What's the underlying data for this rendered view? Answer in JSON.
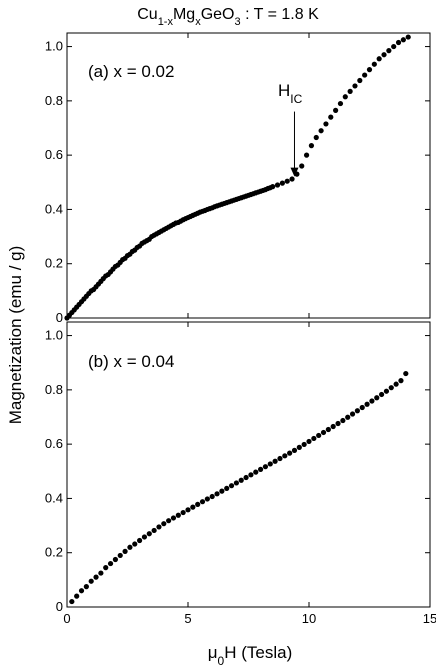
{
  "title": {
    "prefix": "Cu",
    "sub_1": "1-x",
    "mid": "Mg",
    "sub_2": "x",
    "mid2": "GeO",
    "sub_3": "3",
    "suffix": " : T = 1.8 K"
  },
  "ylabel": "Magnetization (emu / g)",
  "xlabel": {
    "mu": "μ",
    "sub": "0",
    "rest": "H (Tesla)"
  },
  "annotation": {
    "main": "H",
    "sub": "IC",
    "x": 9.4,
    "y": 0.51
  },
  "chart_data": [
    {
      "type": "scatter",
      "panel_label": "(a) x = 0.02",
      "xlim": [
        0,
        15
      ],
      "ylim": [
        0,
        1.05
      ],
      "xticks": [
        "0",
        "5",
        "10",
        "15"
      ],
      "yticks": [
        "0",
        "0.2",
        "0.4",
        "0.6",
        "0.8",
        "1.0"
      ],
      "series": [
        {
          "x": [
            0.0,
            0.1,
            0.2,
            0.3,
            0.4,
            0.5,
            0.6,
            0.7,
            0.8,
            0.9,
            1.0,
            1.1,
            1.2,
            1.3,
            1.4,
            1.5,
            1.6,
            1.7,
            1.8,
            1.9,
            2.0,
            2.1,
            2.2,
            2.3,
            2.4,
            2.5,
            2.6,
            2.7,
            2.8,
            2.9,
            3.0,
            3.1,
            3.2,
            3.3,
            3.4,
            3.5,
            3.6,
            3.7,
            3.8,
            3.9,
            4.0,
            4.1,
            4.2,
            4.3,
            4.4,
            4.5,
            4.6,
            4.7,
            4.8,
            4.9,
            5.0,
            5.1,
            5.2,
            5.3,
            5.4,
            5.5,
            5.6,
            5.7,
            5.8,
            5.9,
            6.0,
            6.1,
            6.2,
            6.3,
            6.4,
            6.5,
            6.6,
            6.7,
            6.8,
            6.9,
            7.0,
            7.1,
            7.2,
            7.3,
            7.4,
            7.5,
            7.6,
            7.7,
            7.8,
            7.9,
            8.0,
            8.1,
            8.2,
            8.3,
            8.4,
            8.5,
            8.7,
            8.9,
            9.1,
            9.3,
            9.5,
            9.7,
            9.9,
            10.1,
            10.3,
            10.5,
            10.7,
            10.9,
            11.1,
            11.3,
            11.5,
            11.7,
            11.9,
            12.1,
            12.3,
            12.5,
            12.7,
            12.9,
            13.1,
            13.3,
            13.5,
            13.7,
            13.9,
            14.1
          ],
          "y": [
            0.0,
            0.01,
            0.02,
            0.03,
            0.04,
            0.05,
            0.06,
            0.07,
            0.08,
            0.09,
            0.1,
            0.105,
            0.115,
            0.125,
            0.135,
            0.145,
            0.155,
            0.16,
            0.17,
            0.18,
            0.19,
            0.195,
            0.205,
            0.215,
            0.22,
            0.23,
            0.235,
            0.245,
            0.25,
            0.26,
            0.265,
            0.275,
            0.28,
            0.285,
            0.29,
            0.3,
            0.305,
            0.31,
            0.315,
            0.32,
            0.325,
            0.33,
            0.335,
            0.34,
            0.345,
            0.35,
            0.352,
            0.357,
            0.362,
            0.366,
            0.37,
            0.374,
            0.378,
            0.382,
            0.386,
            0.39,
            0.393,
            0.396,
            0.4,
            0.403,
            0.406,
            0.41,
            0.413,
            0.416,
            0.419,
            0.422,
            0.425,
            0.428,
            0.431,
            0.434,
            0.437,
            0.44,
            0.443,
            0.446,
            0.449,
            0.452,
            0.455,
            0.458,
            0.461,
            0.464,
            0.467,
            0.47,
            0.473,
            0.477,
            0.48,
            0.484,
            0.49,
            0.497,
            0.504,
            0.512,
            0.53,
            0.56,
            0.6,
            0.635,
            0.665,
            0.69,
            0.715,
            0.74,
            0.765,
            0.79,
            0.815,
            0.835,
            0.855,
            0.875,
            0.895,
            0.915,
            0.935,
            0.955,
            0.97,
            0.985,
            1.0,
            1.015,
            1.025,
            1.035
          ]
        }
      ]
    },
    {
      "type": "scatter",
      "panel_label": "(b) x = 0.04",
      "xlim": [
        0,
        15
      ],
      "ylim": [
        0,
        1.05
      ],
      "xticks": [
        "0",
        "5",
        "10",
        "15"
      ],
      "yticks": [
        "0",
        "0.2",
        "0.4",
        "0.6",
        "0.8",
        "1.0"
      ],
      "series": [
        {
          "x": [
            0.2,
            0.4,
            0.6,
            0.8,
            1.0,
            1.2,
            1.4,
            1.6,
            1.8,
            2.0,
            2.2,
            2.4,
            2.6,
            2.8,
            3.0,
            3.2,
            3.4,
            3.6,
            3.8,
            4.0,
            4.2,
            4.4,
            4.6,
            4.8,
            5.0,
            5.2,
            5.4,
            5.6,
            5.8,
            6.0,
            6.2,
            6.4,
            6.6,
            6.8,
            7.0,
            7.2,
            7.4,
            7.6,
            7.8,
            8.0,
            8.2,
            8.4,
            8.6,
            8.8,
            9.0,
            9.2,
            9.4,
            9.6,
            9.8,
            10.0,
            10.2,
            10.4,
            10.6,
            10.8,
            11.0,
            11.2,
            11.4,
            11.6,
            11.8,
            12.0,
            12.2,
            12.4,
            12.6,
            12.8,
            13.0,
            13.2,
            13.4,
            13.6,
            13.8,
            14.0
          ],
          "y": [
            0.02,
            0.04,
            0.06,
            0.075,
            0.095,
            0.11,
            0.125,
            0.145,
            0.16,
            0.175,
            0.19,
            0.205,
            0.22,
            0.232,
            0.245,
            0.258,
            0.27,
            0.282,
            0.295,
            0.307,
            0.318,
            0.328,
            0.338,
            0.348,
            0.358,
            0.368,
            0.378,
            0.388,
            0.398,
            0.407,
            0.417,
            0.427,
            0.437,
            0.447,
            0.457,
            0.467,
            0.477,
            0.487,
            0.497,
            0.507,
            0.517,
            0.527,
            0.537,
            0.547,
            0.557,
            0.567,
            0.577,
            0.588,
            0.599,
            0.61,
            0.621,
            0.632,
            0.643,
            0.654,
            0.665,
            0.676,
            0.687,
            0.699,
            0.711,
            0.723,
            0.735,
            0.747,
            0.759,
            0.771,
            0.783,
            0.795,
            0.808,
            0.821,
            0.834,
            0.86
          ]
        }
      ]
    }
  ]
}
